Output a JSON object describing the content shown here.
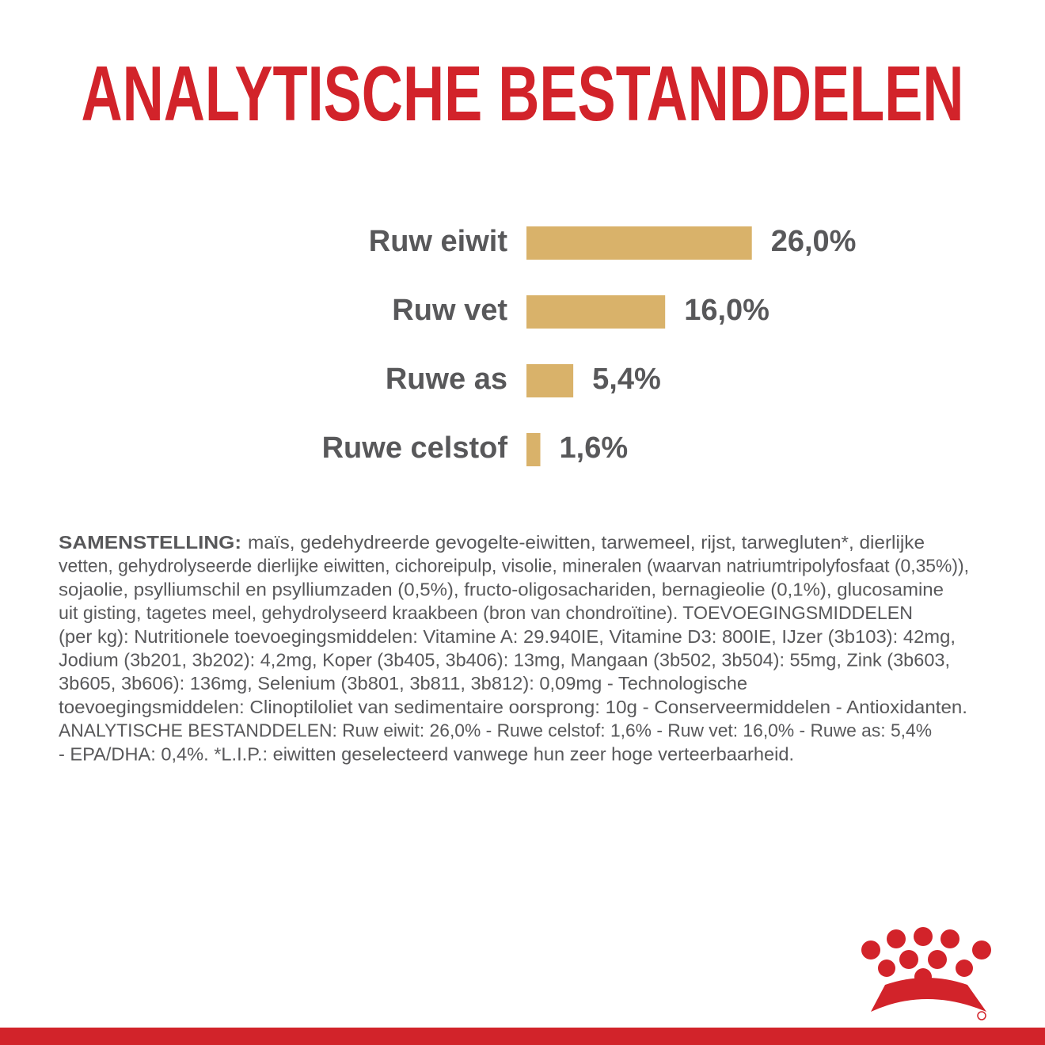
{
  "chart_data": {
    "type": "bar",
    "orientation": "horizontal",
    "title": "ANALYTISCHE BESTANDDELEN",
    "categories": [
      "Ruw eiwit",
      "Ruw vet",
      "Ruwe as",
      "Ruwe celstof"
    ],
    "values": [
      26.0,
      16.0,
      5.4,
      1.6
    ],
    "value_labels": [
      "26,0%",
      "16,0%",
      "5,4%",
      "1,6%"
    ],
    "color": "#d9b26a"
  },
  "composition": {
    "label": "SAMENSTELLING:",
    "lines": [
      "maïs, gedehydreerde gevogelte-eiwitten, tarwemeel, rijst, tarwegluten*, dierlijke",
      "vetten, gehydrolyseerde dierlijke eiwitten, cichoreipulp, visolie, mineralen (waarvan natriumtripolyfosfaat (0,35%)),",
      "sojaolie, psylliumschil en psylliumzaden (0,5%), fructo-oligosachariden, bernagieolie (0,1%), glucosamine",
      "uit gisting, tagetes meel, gehydrolyseerd kraakbeen (bron van chondroïtine). TOEVOEGINGSMIDDELEN",
      "(per  kg): Nutritionele toevoegingsmiddelen: Vitamine A: 29.940IE, Vitamine D3: 800IE, IJzer (3b103): 42mg,",
      "Jodium (3b201, 3b202): 4,2mg, Koper (3b405, 3b406): 13mg, Mangaan (3b502, 3b504): 55mg, Zink (3b603,",
      "3b605, 3b606): 136mg, Selenium (3b801, 3b811, 3b812): 0,09mg - Technologische",
      "toevoegingsmiddelen: Clinoptiloliet van sedimentaire oorsprong: 10g - Conserveermiddelen - Antioxidanten.",
      "ANALYTISCHE BESTANDDELEN: Ruw eiwit: 26,0% - Ruwe celstof: 1,6% - Ruw vet: 16,0% - Ruwe as: 5,4%",
      "- EPA/DHA: 0,4%. *L.I.P.: eiwitten geselecteerd vanwege hun zeer hoge verteerbaarheid."
    ]
  }
}
